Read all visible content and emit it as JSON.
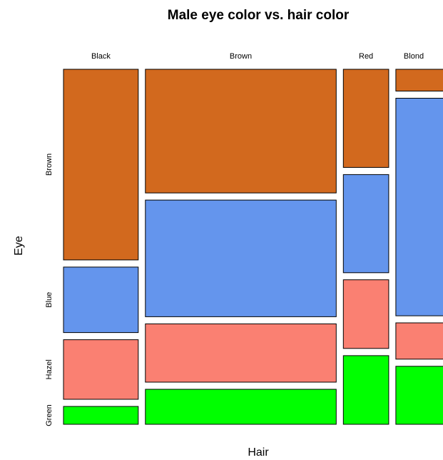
{
  "chart_data": {
    "type": "mosaic",
    "title": "Male eye color vs. hair color",
    "xlabel": "Hair",
    "ylabel": "Eye",
    "hair_levels": [
      "Black",
      "Brown",
      "Red",
      "Blond"
    ],
    "eye_levels": [
      "Brown",
      "Blue",
      "Hazel",
      "Green"
    ],
    "colors": {
      "Brown": "#D2691E",
      "Blue": "#6495ED",
      "Hazel": "#FA8072",
      "Green": "#00FF00"
    },
    "counts": {
      "Black": {
        "Brown": 32,
        "Blue": 11,
        "Hazel": 10,
        "Green": 3
      },
      "Brown": {
        "Brown": 53,
        "Blue": 50,
        "Hazel": 25,
        "Green": 15
      },
      "Red": {
        "Brown": 10,
        "Blue": 10,
        "Hazel": 7,
        "Green": 7
      },
      "Blond": {
        "Brown": 3,
        "Blue": 30,
        "Hazel": 5,
        "Green": 8
      }
    }
  }
}
